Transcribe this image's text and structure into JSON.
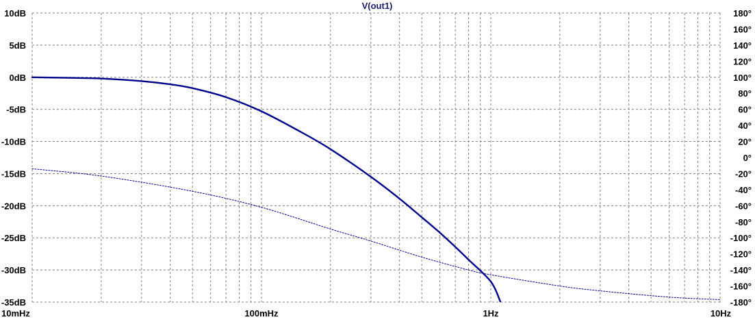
{
  "chart_data": {
    "type": "line",
    "title": "V(out1)",
    "x_axis": {
      "scale": "log",
      "range": [
        0.01,
        10
      ],
      "tick_values": [
        0.01,
        0.1,
        1,
        10
      ],
      "tick_labels": [
        "10mHz",
        "100mHz",
        "1Hz",
        "10Hz"
      ]
    },
    "y_axis_left": {
      "range": [
        -35,
        10
      ],
      "tick_values": [
        10,
        5,
        0,
        -5,
        -10,
        -15,
        -20,
        -25,
        -30,
        -35
      ],
      "tick_labels": [
        "10dB",
        "5dB",
        "0dB",
        "-5dB",
        "-10dB",
        "-15dB",
        "-20dB",
        "-25dB",
        "-30dB",
        "-35dB"
      ]
    },
    "y_axis_right": {
      "range": [
        -180,
        180
      ],
      "tick_values": [
        180,
        160,
        140,
        120,
        100,
        80,
        60,
        40,
        20,
        0,
        -20,
        -40,
        -60,
        -80,
        -100,
        -120,
        -140,
        -160,
        -180
      ],
      "tick_labels": [
        "180°",
        "160°",
        "140°",
        "120°",
        "100°",
        "80°",
        "60°",
        "40°",
        "20°",
        "0°",
        "-20°",
        "-40°",
        "-60°",
        "-80°",
        "-100°",
        "-120°",
        "-140°",
        "-160°",
        "-180°"
      ]
    },
    "grid": true,
    "colors": {
      "series": "#00008b",
      "grid": "#808080",
      "title": "#1a1a66"
    },
    "series": [
      {
        "axis": "left",
        "style": "solid",
        "x": [
          0.01,
          0.015,
          0.02,
          0.03,
          0.04,
          0.05,
          0.07,
          0.1,
          0.15,
          0.2,
          0.3,
          0.4,
          0.5,
          0.6,
          0.7,
          0.8,
          1.0,
          1.1
        ],
        "y": [
          0.0,
          -0.1,
          -0.2,
          -0.6,
          -1.1,
          -1.7,
          -3.1,
          -5.3,
          -8.6,
          -11.2,
          -15.5,
          -18.9,
          -21.8,
          -24.2,
          -26.4,
          -28.4,
          -31.8,
          -34.9
        ]
      },
      {
        "axis": "right",
        "style": "dotted",
        "x": [
          0.01,
          0.02,
          0.05,
          0.1,
          0.2,
          0.3,
          0.5,
          0.8,
          1.0,
          2,
          3,
          5,
          7,
          10
        ],
        "y": [
          -14,
          -23,
          -42,
          -62,
          -89,
          -104,
          -124,
          -140,
          -146,
          -160,
          -166,
          -172,
          -175,
          -177
        ]
      }
    ]
  }
}
